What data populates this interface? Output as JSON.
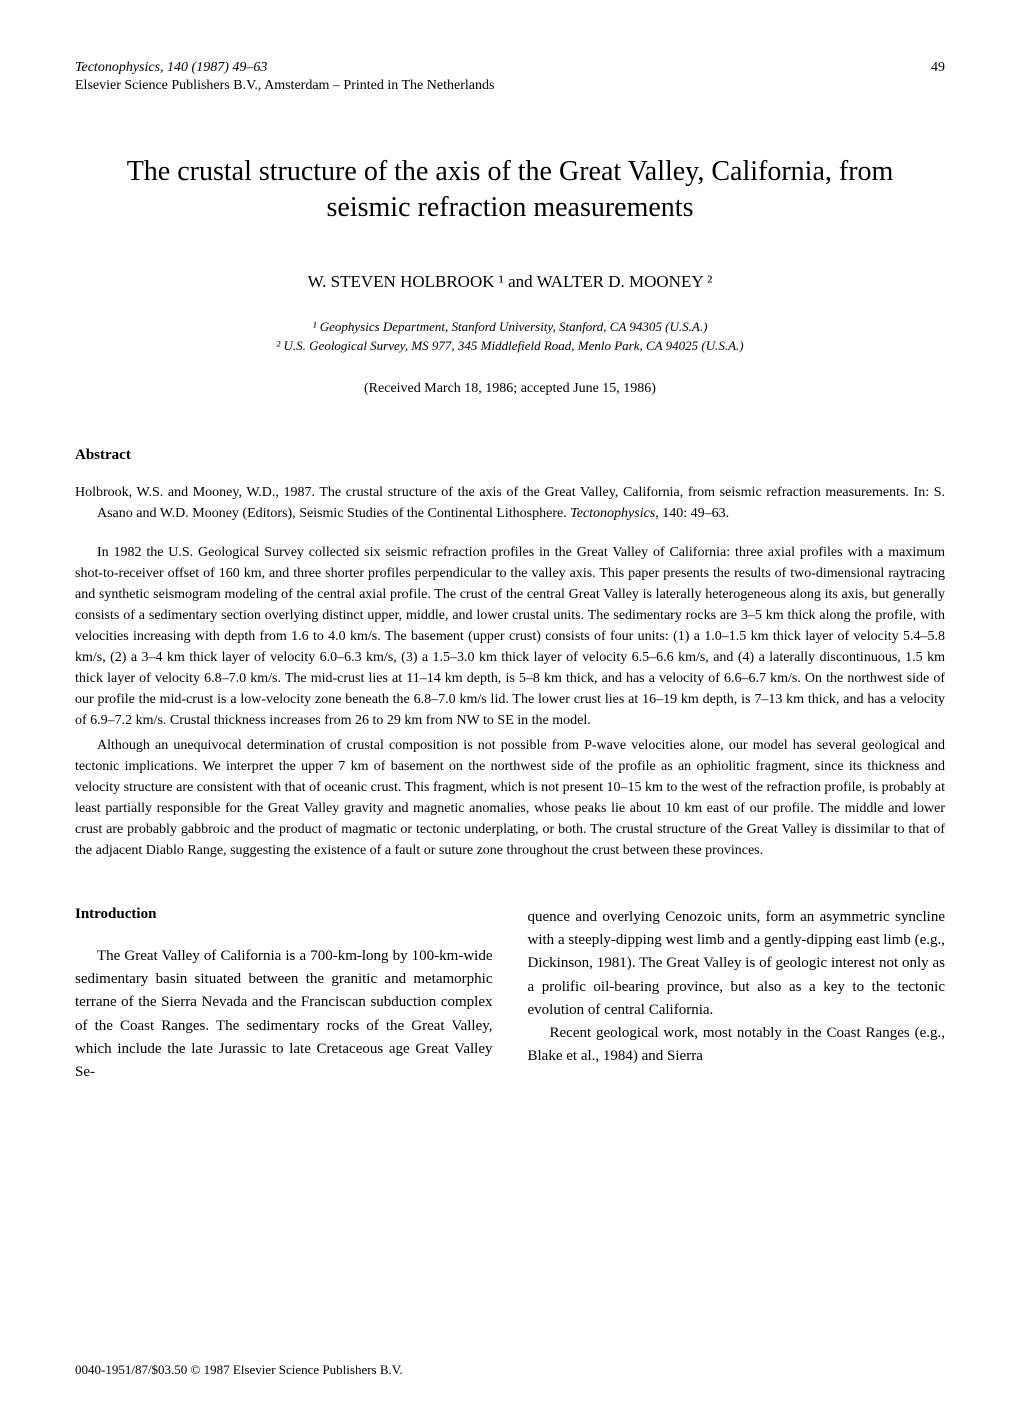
{
  "header": {
    "journal_citation": "Tectonophysics, 140 (1987) 49–63",
    "page_number": "49",
    "publisher": "Elsevier Science Publishers B.V., Amsterdam – Printed in The Netherlands"
  },
  "title": "The crustal structure of the axis of the Great Valley, California, from seismic refraction measurements",
  "authors": "W. STEVEN HOLBROOK ¹ and WALTER D. MOONEY ²",
  "affiliations": {
    "line1": "¹ Geophysics Department, Stanford University, Stanford, CA 94305 (U.S.A.)",
    "line2": "² U.S. Geological Survey, MS 977, 345 Middlefield Road, Menlo Park, CA 94025 (U.S.A.)"
  },
  "dates": "(Received March 18, 1986; accepted June 15, 1986)",
  "abstract": {
    "heading": "Abstract",
    "citation_text": "Holbrook, W.S. and Mooney, W.D., 1987. The crustal structure of the axis of the Great Valley, California, from seismic refraction measurements. In: S. Asano and W.D. Mooney (Editors), Seismic Studies of the Continental Lithosphere. ",
    "citation_journal": "Tectonophysics,",
    "citation_pages": " 140: 49–63.",
    "para1": "In 1982 the U.S. Geological Survey collected six seismic refraction profiles in the Great Valley of California: three axial profiles with a maximum shot-to-receiver offset of 160 km, and three shorter profiles perpendicular to the valley axis. This paper presents the results of two-dimensional raytracing and synthetic seismogram modeling of the central axial profile. The crust of the central Great Valley is laterally heterogeneous along its axis, but generally consists of a sedimentary section overlying distinct upper, middle, and lower crustal units. The sedimentary rocks are 3–5 km thick along the profile, with velocities increasing with depth from 1.6 to 4.0 km/s. The basement (upper crust) consists of four units: (1) a 1.0–1.5 km thick layer of velocity 5.4–5.8 km/s, (2) a 3–4 km thick layer of velocity 6.0–6.3 km/s, (3) a 1.5–3.0 km thick layer of velocity 6.5–6.6 km/s, and (4) a laterally discontinuous, 1.5 km thick layer of velocity 6.8–7.0 km/s. The mid-crust lies at 11–14 km depth, is 5–8 km thick, and has a velocity of 6.6–6.7 km/s. On the northwest side of our profile the mid-crust is a low-velocity zone beneath the 6.8–7.0 km/s lid. The lower crust lies at 16–19 km depth, is 7–13 km thick, and has a velocity of 6.9–7.2 km/s. Crustal thickness increases from 26 to 29 km from NW to SE in the model.",
    "para2": "Although an unequivocal determination of crustal composition is not possible from P-wave velocities alone, our model has several geological and tectonic implications. We interpret the upper 7 km of basement on the northwest side of the profile as an ophiolitic fragment, since its thickness and velocity structure are consistent with that of oceanic crust. This fragment, which is not present 10–15 km to the west of the refraction profile, is probably at least partially responsible for the Great Valley gravity and magnetic anomalies, whose peaks lie about 10 km east of our profile. The middle and lower crust are probably gabbroic and the product of magmatic or tectonic underplating, or both. The crustal structure of the Great Valley is dissimilar to that of the adjacent Diablo Range, suggesting the existence of a fault or suture zone throughout the crust between these provinces."
  },
  "introduction": {
    "heading": "Introduction",
    "col1_text": "The Great Valley of California is a 700-km-long by 100-km-wide sedimentary basin situated between the granitic and metamorphic terrane of the Sierra Nevada and the Franciscan subduction complex of the Coast Ranges. The sedimentary rocks of the Great Valley, which include the late Jurassic to late Cretaceous age Great Valley Se-",
    "col2_text1": "quence and overlying Cenozoic units, form an asymmetric syncline with a steeply-dipping west limb and a gently-dipping east limb (e.g., Dickinson, 1981). The Great Valley is of geologic interest not only as a prolific oil-bearing province, but also as a key to the tectonic evolution of central California.",
    "col2_text2": "Recent geological work, most notably in the Coast Ranges (e.g., Blake et al., 1984) and Sierra"
  },
  "footer": "0040-1951/87/$03.50    © 1987 Elsevier Science Publishers B.V."
}
